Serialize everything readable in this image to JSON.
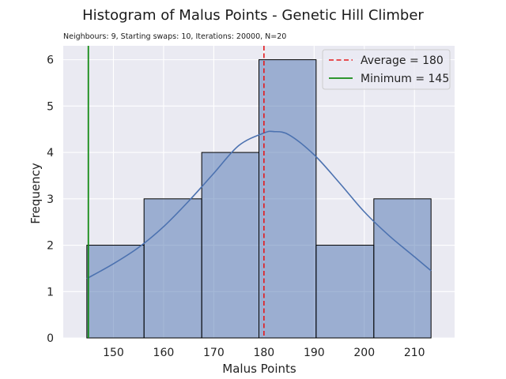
{
  "chart_data": {
    "type": "histogram",
    "title": "Histogram of Malus Points - Genetic Hill Climber",
    "subtitle": "Neighbours: 9, Starting swaps: 10, Iterations: 20000, N=20",
    "xlabel": "Malus Points",
    "ylabel": "Frequency",
    "xlim": [
      140,
      218
    ],
    "ylim": [
      0,
      6.3
    ],
    "xticks": [
      150,
      160,
      170,
      180,
      190,
      200,
      210
    ],
    "yticks": [
      0,
      1,
      2,
      3,
      4,
      5,
      6
    ],
    "bins": [
      {
        "x0": 144.7,
        "x1": 156.1,
        "count": 2
      },
      {
        "x0": 156.1,
        "x1": 167.6,
        "count": 3
      },
      {
        "x0": 167.6,
        "x1": 179.0,
        "count": 4
      },
      {
        "x0": 179.0,
        "x1": 190.4,
        "count": 6
      },
      {
        "x0": 190.4,
        "x1": 201.9,
        "count": 2
      },
      {
        "x0": 201.9,
        "x1": 213.3,
        "count": 3
      }
    ],
    "kde": {
      "x": [
        144.7,
        150,
        155,
        160,
        165,
        170,
        175,
        180,
        182,
        185,
        190,
        195,
        200,
        205,
        210,
        213.3
      ],
      "y": [
        1.28,
        1.6,
        1.95,
        2.4,
        2.95,
        3.55,
        4.15,
        4.42,
        4.45,
        4.38,
        3.95,
        3.35,
        2.72,
        2.2,
        1.75,
        1.45
      ]
    },
    "average": 180,
    "minimum": 145,
    "legend": [
      {
        "label": "Average = 180",
        "color": "#e41a1c",
        "style": "dashed"
      },
      {
        "label": "Minimum = 145",
        "color": "#138a13",
        "style": "solid"
      }
    ],
    "legend_position": "top-right",
    "grid": true,
    "colors": {
      "background": "#eaeaf2",
      "bar_fill": "#4c72b0",
      "bar_edge": "#000000",
      "kde": "#4c72b0",
      "average": "#e41a1c",
      "minimum": "#138a13",
      "grid": "#ffffff"
    }
  }
}
